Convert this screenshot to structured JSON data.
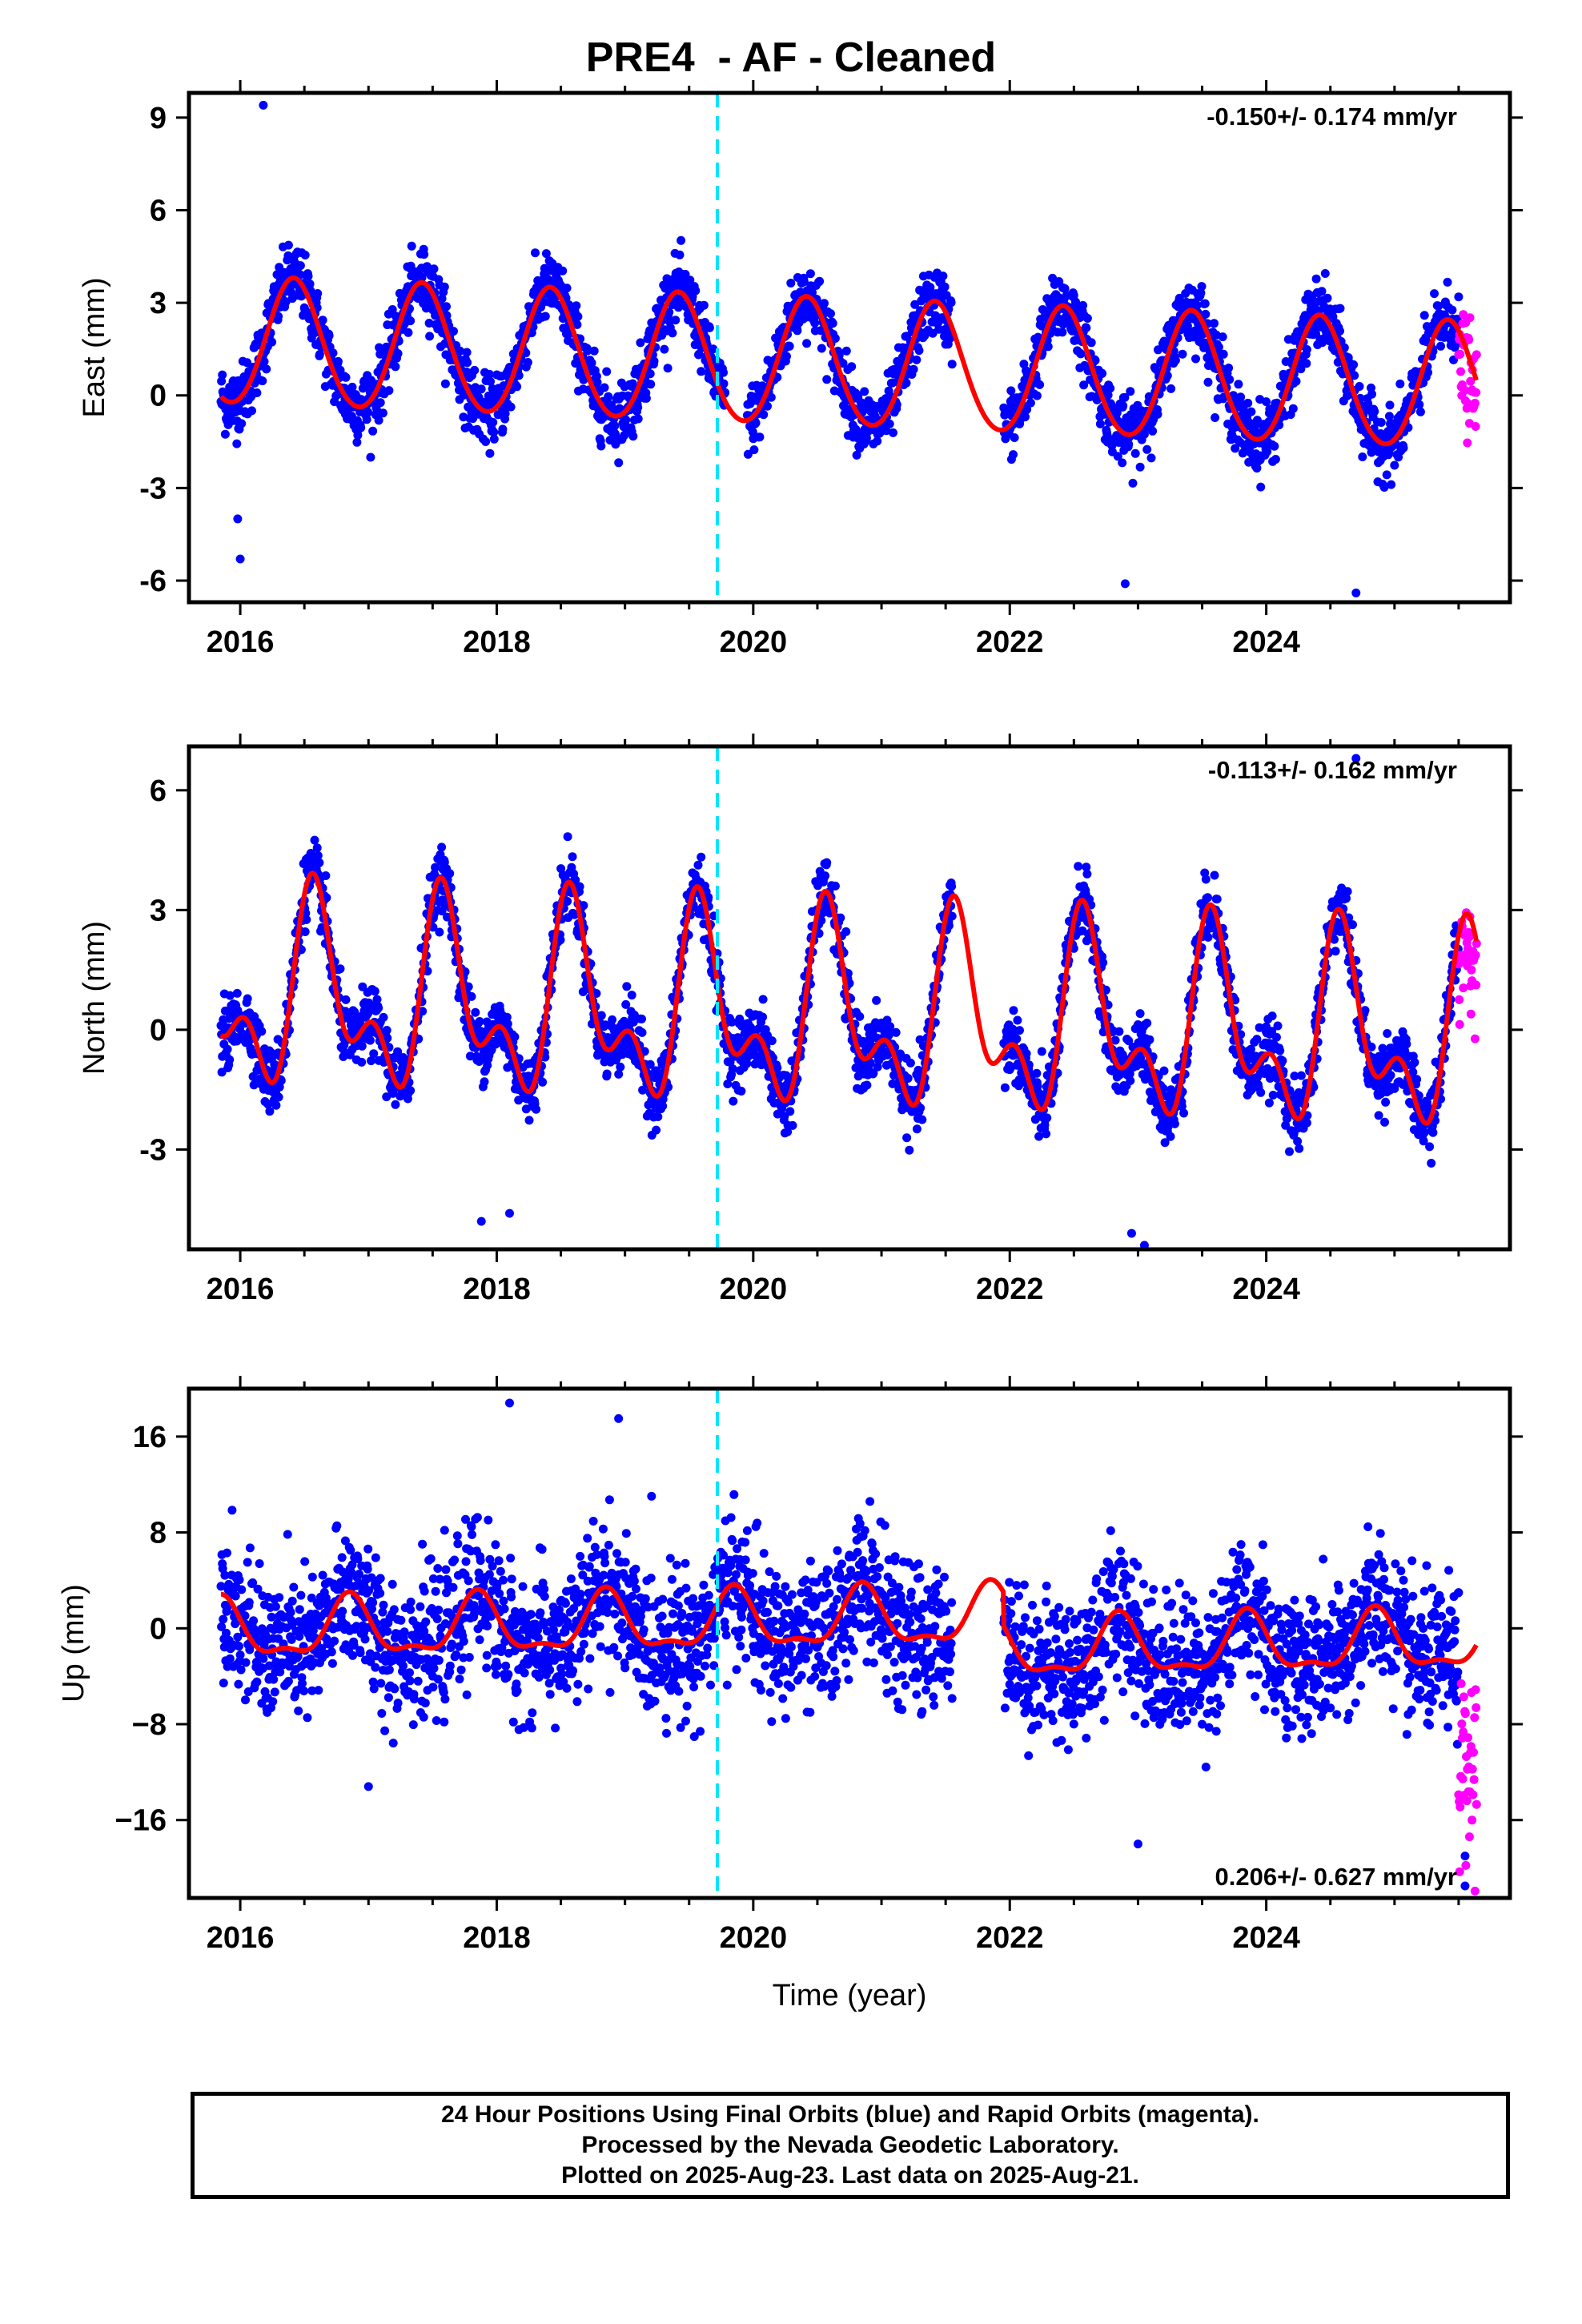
{
  "title": "PRE4  - AF - Cleaned",
  "footer": {
    "line1": "24 Hour Positions Using Final Orbits (blue) and Rapid Orbits (magenta).",
    "line2": "Processed by the Nevada Geodetic Laboratory.",
    "line3": "Plotted on 2025-Aug-23. Last data on 2025-Aug-21."
  },
  "colors": {
    "final_orbits": "#0000ff",
    "rapid_orbits": "#ff00ff",
    "model_fit": "#ff0000",
    "event_marker": "#00e5ff",
    "frame": "#000000"
  },
  "chart_data": [
    {
      "type": "scatter",
      "panel": "east",
      "ylabel": "East (mm)",
      "xlabel": "",
      "xlim": [
        2015.6,
        2025.9
      ],
      "ylim": [
        -6.7,
        9.8
      ],
      "yticks": [
        -6,
        -3,
        0,
        3,
        6,
        9
      ],
      "ytick_labels": [
        "-6",
        "-3",
        "0",
        "3",
        "6",
        "9"
      ],
      "xticks": [
        2016,
        2018,
        2020,
        2022,
        2024
      ],
      "xtick_labels": [
        "2016",
        "2018",
        "2020",
        "2022",
        "2024"
      ],
      "rate_label": "-0.150+/- 0.174 mm/yr",
      "rate_position": "top-right",
      "data_start": 2015.85,
      "data_end": 2025.64,
      "final_end": 2025.5,
      "event_marker_x": 2019.72,
      "gaps": [
        [
          2019.78,
          2019.95
        ],
        [
          2021.55,
          2021.95
        ]
      ],
      "model": {
        "offset": 1.0,
        "trend": -0.15,
        "annual_amp": 2.05,
        "annual_peak": 0.42,
        "semiannual_amp": 0.15,
        "semiannual_peak": 0.4,
        "trend_ref": 2020.5
      },
      "outliers": [
        [
          2016.18,
          9.4
        ],
        [
          2016.0,
          -5.3
        ],
        [
          2015.98,
          -4.0
        ],
        [
          2022.9,
          -6.1
        ],
        [
          2024.7,
          -6.4
        ]
      ]
    },
    {
      "type": "scatter",
      "panel": "north",
      "ylabel": "North (mm)",
      "xlabel": "",
      "xlim": [
        2015.6,
        2025.9
      ],
      "ylim": [
        -5.5,
        7.1
      ],
      "yticks": [
        -3,
        0,
        3,
        6
      ],
      "ytick_labels": [
        "-3",
        "0",
        "3",
        "6"
      ],
      "xticks": [
        2016,
        2018,
        2020,
        2022,
        2024
      ],
      "xtick_labels": [
        "2016",
        "2018",
        "2020",
        "2022",
        "2024"
      ],
      "rate_label": "-0.113+/- 0.162 mm/yr",
      "rate_position": "top-right",
      "data_start": 2015.85,
      "data_end": 2025.64,
      "final_end": 2025.5,
      "event_marker_x": 2019.72,
      "gaps": [
        [
          2021.55,
          2021.95
        ]
      ],
      "model": {
        "offset": 0.35,
        "trend": -0.113,
        "annual_amp": 1.95,
        "annual_peak": 0.6,
        "semiannual_amp": 1.25,
        "semiannual_peak": 0.55,
        "trend_ref": 2020.5
      },
      "outliers": [
        [
          2017.88,
          -4.8
        ],
        [
          2018.1,
          -4.6
        ],
        [
          2022.95,
          -5.1
        ],
        [
          2023.05,
          -5.4
        ],
        [
          2024.7,
          6.8
        ]
      ]
    },
    {
      "type": "scatter",
      "panel": "up",
      "ylabel": "Up (mm)",
      "xlabel": "Time (year)",
      "xlim": [
        2015.6,
        2025.9
      ],
      "ylim": [
        -22.5,
        20.0
      ],
      "yticks": [
        -16,
        -8,
        0,
        8,
        16
      ],
      "ytick_labels": [
        "−16",
        "−8",
        "0",
        "8",
        "16"
      ],
      "xticks": [
        2016,
        2018,
        2020,
        2022,
        2024
      ],
      "xtick_labels": [
        "2016",
        "2018",
        "2020",
        "2022",
        "2024"
      ],
      "rate_label": "0.206+/- 0.627 mm/yr",
      "rate_position": "bottom-right",
      "data_start": 2015.85,
      "data_end": 2025.64,
      "final_end": 2025.5,
      "event_marker_x": 2019.72,
      "gaps": [
        [
          2021.55,
          2021.95
        ]
      ],
      "model": {
        "offset": 0.6,
        "trend": 0.206,
        "annual_amp": 2.3,
        "annual_peak": 0.85,
        "semiannual_amp": 0.9,
        "semiannual_peak": 0.35,
        "trend_ref": 2020.5,
        "step_at": 2021.95,
        "step_size": -2.8
      },
      "outliers": [
        [
          2018.1,
          18.8
        ],
        [
          2018.95,
          17.5
        ],
        [
          2017.0,
          -13.2
        ],
        [
          2023.0,
          -18.0
        ],
        [
          2025.55,
          -21.5
        ],
        [
          2025.55,
          -19.0
        ]
      ]
    }
  ]
}
